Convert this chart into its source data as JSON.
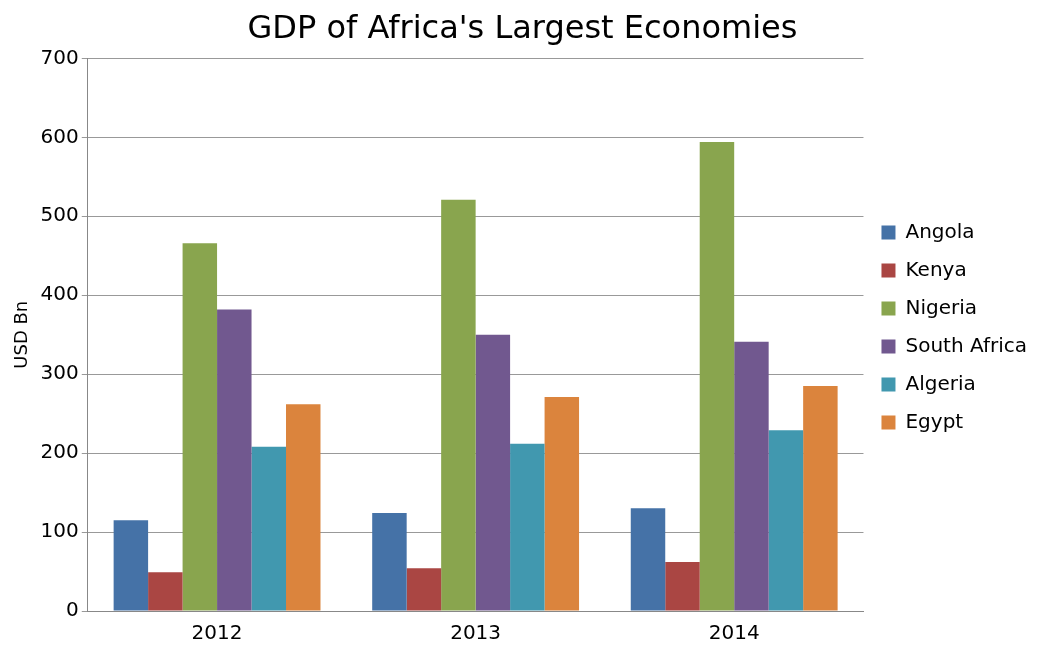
{
  "chart_data": {
    "type": "bar",
    "title": "GDP of Africa's Largest Economies",
    "ylabel": "USD Bn",
    "categories": [
      "2012",
      "2013",
      "2014"
    ],
    "series": [
      {
        "name": "Angola",
        "color": "#4572a7",
        "values": [
          115,
          124,
          130
        ]
      },
      {
        "name": "Kenya",
        "color": "#aa4643",
        "values": [
          49,
          54,
          62
        ]
      },
      {
        "name": "Nigeria",
        "color": "#89a54e",
        "values": [
          466,
          521,
          594
        ]
      },
      {
        "name": "South Africa",
        "color": "#71588f",
        "values": [
          382,
          350,
          341
        ]
      },
      {
        "name": "Algeria",
        "color": "#4198af",
        "values": [
          208,
          212,
          229
        ]
      },
      {
        "name": "Egypt",
        "color": "#db843d",
        "values": [
          262,
          271,
          285
        ]
      }
    ],
    "ylim": [
      0,
      700
    ],
    "yticks": [
      0,
      100,
      200,
      300,
      400,
      500,
      600,
      700
    ],
    "grid": "y",
    "legend": "right"
  }
}
